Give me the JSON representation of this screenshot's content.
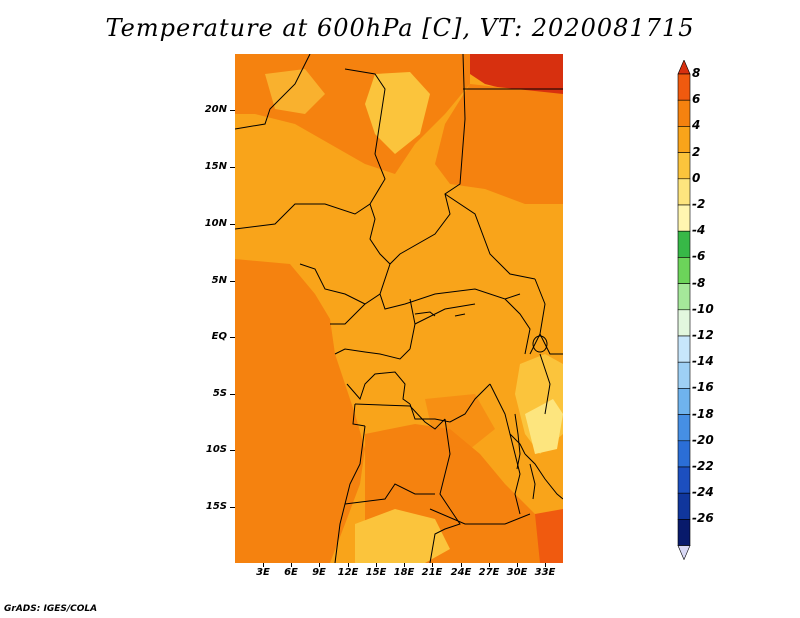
{
  "title": "Temperature at 600hPa [C], VT: 2020081715",
  "credit": "GrADS: IGES/COLA",
  "lat_labels": [
    "20N",
    "15N",
    "10N",
    "5N",
    "EQ",
    "5S",
    "10S",
    "15S"
  ],
  "lon_labels": [
    "3E",
    "6E",
    "9E",
    "12E",
    "15E",
    "18E",
    "21E",
    "24E",
    "27E",
    "30E",
    "33E"
  ],
  "colorbar": {
    "labels": [
      "8",
      "6",
      "4",
      "2",
      "0",
      "-2",
      "-4",
      "-6",
      "-8",
      "-10",
      "-12",
      "-14",
      "-16",
      "-18",
      "-20",
      "-22",
      "-24",
      "-26"
    ],
    "colors": [
      "#d7300f",
      "#f05a0f",
      "#f5820f",
      "#f9a41a",
      "#fbc43c",
      "#fde57e",
      "#fff6b0",
      "#37b847",
      "#6cd45a",
      "#a5e89a",
      "#e2f7de",
      "#c7e6fb",
      "#9ed0f5",
      "#6fb3ee",
      "#468fe4",
      "#2b6ed6",
      "#1c4fbf",
      "#10369c",
      "#081a6b",
      "#d9d9f5"
    ]
  },
  "map": {
    "colors": {
      "c8": "#d7300f",
      "c6": "#f05a0f",
      "c4": "#f5820f",
      "c2": "#f9a41a",
      "c0": "#fbc43c",
      "cm2": "#fde57e"
    }
  }
}
